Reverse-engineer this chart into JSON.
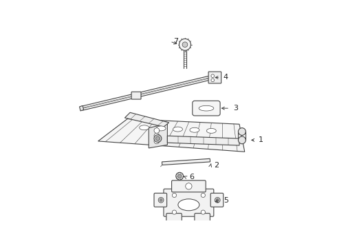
{
  "bg_color": "#ffffff",
  "line_color": "#444444",
  "label_color": "#222222",
  "figsize": [
    4.9,
    3.6
  ],
  "dpi": 100
}
